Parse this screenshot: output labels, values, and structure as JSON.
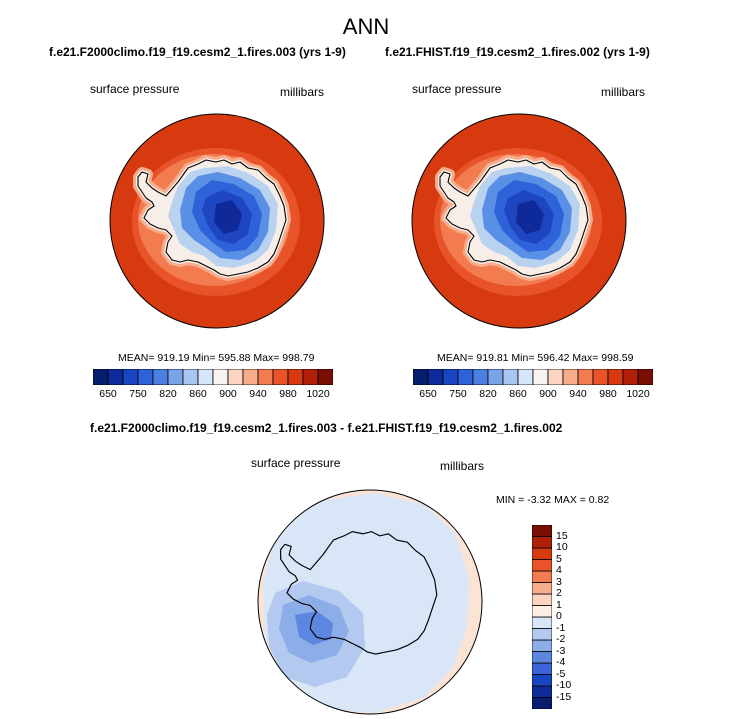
{
  "figure_title": "ANN",
  "colors": {
    "ocean_high": "#d83a10",
    "ocean_mid": "#e8532a",
    "coast_ring": "#f27b50",
    "coast_light": "#f7ad8c",
    "white_band": "#f8eee8",
    "ice_edge": "#b9d2f0",
    "ice_1": "#5a8fe6",
    "ice_2": "#2e62d8",
    "ice_3": "#1e46c0",
    "ice_4": "#0f2a98",
    "diff_bg": "#d8e6f8",
    "diff_pos": "#fbe4d6",
    "diff_n2": "#b4c9f0",
    "diff_n3": "#8caee8",
    "diff_n4": "#5d86e0"
  },
  "chart_data": [
    {
      "type": "heatmap",
      "projection": "south-polar stereographic",
      "title": "f.e21.F2000climo.f19_f19.cesm2_1.fires.003 (yrs 1-9)",
      "variable": "surface pressure",
      "units": "millibars",
      "stats": {
        "mean": "919.19",
        "min": "595.88",
        "max": "998.79"
      },
      "stats_text": "MEAN= 919.19  Min= 595.88  Max= 998.79",
      "colorbar": {
        "orientation": "horizontal",
        "levels": [
          "650",
          "700",
          "750",
          "780",
          "820",
          "840",
          "860",
          "880",
          "900",
          "920",
          "940",
          "960",
          "980",
          "1000",
          "1020"
        ],
        "labels": [
          "650",
          "750",
          "820",
          "860",
          "900",
          "940",
          "980",
          "1020"
        ],
        "colors": [
          "#071e6e",
          "#0d2c9a",
          "#1a45c2",
          "#2e62d8",
          "#4b80e2",
          "#7aa4ea",
          "#a9c6f2",
          "#d6e5f8",
          "#f7f4f2",
          "#fbd5c0",
          "#f7ad8c",
          "#f27b50",
          "#e8532a",
          "#d83a10",
          "#b02008",
          "#7a0e04"
        ]
      }
    },
    {
      "type": "heatmap",
      "projection": "south-polar stereographic",
      "title": "f.e21.FHIST.f19_f19.cesm2_1.fires.002 (yrs 1-9)",
      "variable": "surface pressure",
      "units": "millibars",
      "stats": {
        "mean": "919.81",
        "min": "596.42",
        "max": "998.59"
      },
      "stats_text": "MEAN= 919.81  Min= 596.42  Max= 998.59",
      "colorbar": {
        "orientation": "horizontal",
        "levels": [
          "650",
          "700",
          "750",
          "780",
          "820",
          "840",
          "860",
          "880",
          "900",
          "920",
          "940",
          "960",
          "980",
          "1000",
          "1020"
        ],
        "labels": [
          "650",
          "750",
          "820",
          "860",
          "900",
          "940",
          "980",
          "1020"
        ],
        "colors": [
          "#071e6e",
          "#0d2c9a",
          "#1a45c2",
          "#2e62d8",
          "#4b80e2",
          "#7aa4ea",
          "#a9c6f2",
          "#d6e5f8",
          "#f7f4f2",
          "#fbd5c0",
          "#f7ad8c",
          "#f27b50",
          "#e8532a",
          "#d83a10",
          "#b02008",
          "#7a0e04"
        ]
      }
    },
    {
      "type": "heatmap",
      "projection": "south-polar stereographic",
      "title": "f.e21.F2000climo.f19_f19.cesm2_1.fires.003 - f.e21.FHIST.f19_f19.cesm2_1.fires.002",
      "variable": "surface pressure",
      "units": "millibars",
      "stats": {
        "min": "-3.32",
        "max": "0.82"
      },
      "stats_text": "MIN =  -3.32 MAX =   0.82",
      "colorbar": {
        "orientation": "vertical",
        "levels": [
          "-15",
          "-10",
          "-5",
          "-4",
          "-3",
          "-2",
          "-1",
          "0",
          "1",
          "2",
          "3",
          "4",
          "5",
          "10",
          "15"
        ],
        "colors": [
          "#071e6e",
          "#0d2c9a",
          "#1a45c2",
          "#3a64d8",
          "#5d86e0",
          "#8caee8",
          "#b4c9f0",
          "#d8e6f8",
          "#fdeee4",
          "#fbd5c0",
          "#f7ad8c",
          "#f27b50",
          "#e8532a",
          "#d83a10",
          "#b02008",
          "#7a0e04"
        ]
      }
    }
  ]
}
